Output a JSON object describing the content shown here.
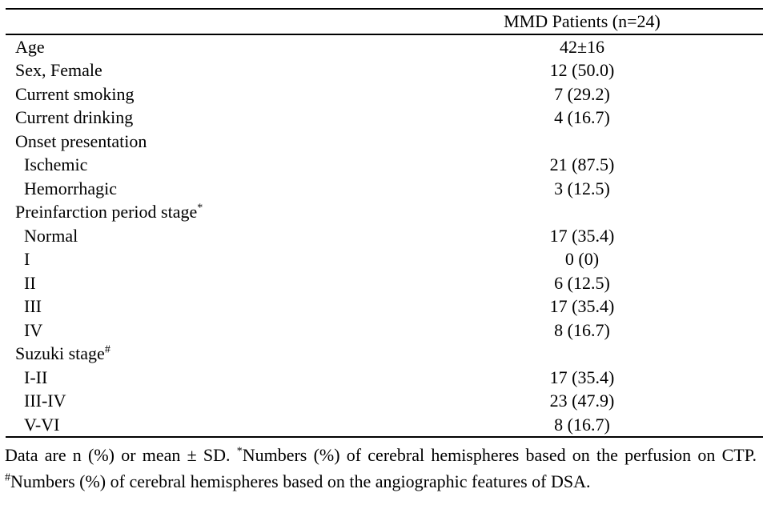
{
  "page": {
    "background_color": "#ffffff",
    "text_color": "#000000"
  },
  "table": {
    "header": {
      "value_label": "MMD Patients (n=24)"
    },
    "rows": [
      {
        "label": "Age",
        "sup": "",
        "value": "42±16",
        "indent": false
      },
      {
        "label": "Sex, Female",
        "sup": "",
        "value": "12 (50.0)",
        "indent": false
      },
      {
        "label": "Current smoking",
        "sup": "",
        "value": "7 (29.2)",
        "indent": false
      },
      {
        "label": "Current drinking",
        "sup": "",
        "value": "4 (16.7)",
        "indent": false
      },
      {
        "label": "Onset presentation",
        "sup": "",
        "value": "",
        "indent": false
      },
      {
        "label": "Ischemic",
        "sup": "",
        "value": "21 (87.5)",
        "indent": true
      },
      {
        "label": "Hemorrhagic",
        "sup": "",
        "value": "3 (12.5)",
        "indent": true
      },
      {
        "label": "Preinfarction period stage",
        "sup": "*",
        "value": "",
        "indent": false
      },
      {
        "label": "Normal",
        "sup": "",
        "value": "17 (35.4)",
        "indent": true
      },
      {
        "label": "I",
        "sup": "",
        "value": "0 (0)",
        "indent": true
      },
      {
        "label": "II",
        "sup": "",
        "value": "6 (12.5)",
        "indent": true
      },
      {
        "label": "III",
        "sup": "",
        "value": "17 (35.4)",
        "indent": true
      },
      {
        "label": "IV",
        "sup": "",
        "value": "8 (16.7)",
        "indent": true
      },
      {
        "label": "Suzuki stage",
        "sup": "#",
        "value": "",
        "indent": false
      },
      {
        "label": "I-II",
        "sup": "",
        "value": "17 (35.4)",
        "indent": true
      },
      {
        "label": "III-IV",
        "sup": "",
        "value": "23 (47.9)",
        "indent": true
      },
      {
        "label": "V-VI",
        "sup": "",
        "value": "8 (16.7)",
        "indent": true
      }
    ]
  },
  "footnote": {
    "segments": [
      {
        "text": "Data are n (%) or mean ± SD. ",
        "sup": false
      },
      {
        "text": "*",
        "sup": true
      },
      {
        "text": "Numbers (%) of cerebral hemispheres based on the perfusion on CTP. ",
        "sup": false
      },
      {
        "text": "#",
        "sup": true
      },
      {
        "text": "Numbers (%) of cerebral hemispheres based on the angiographic features of DSA.",
        "sup": false
      }
    ]
  }
}
